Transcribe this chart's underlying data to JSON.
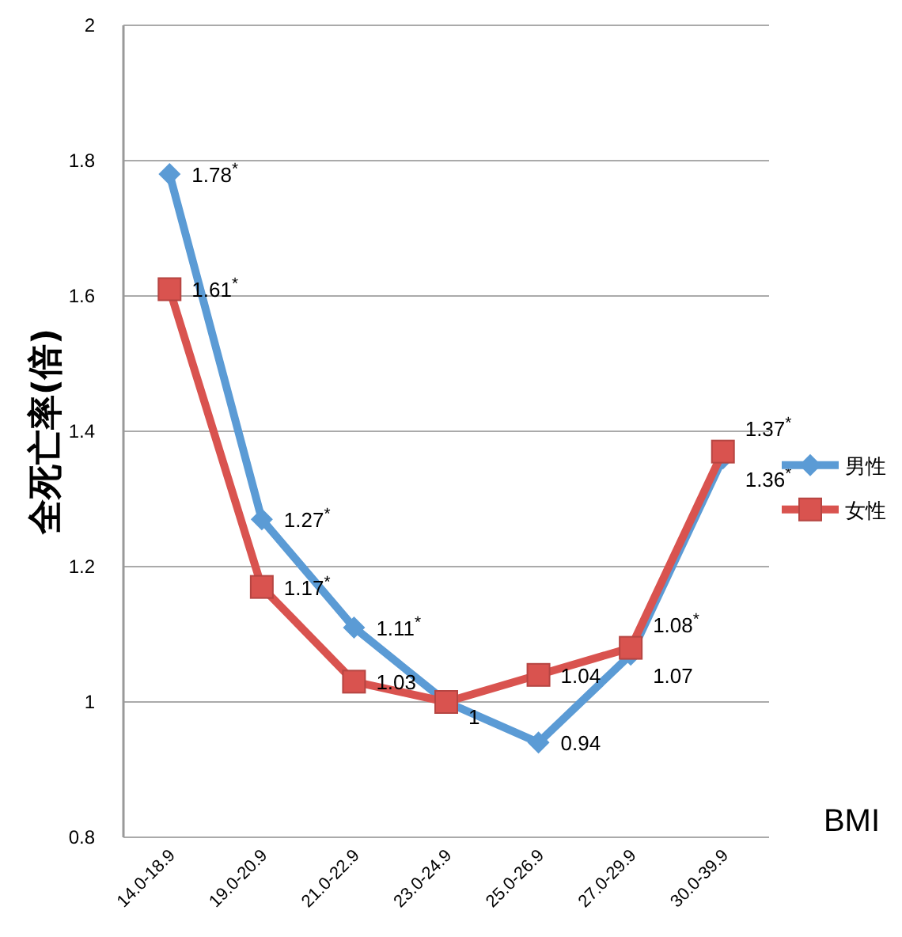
{
  "chart_data": {
    "type": "line",
    "ylabel": "全死亡率(倍)",
    "xlabel": "BMI",
    "categories": [
      "14.0-18.9",
      "19.0-20.9",
      "21.0-22.9",
      "23.0-24.9",
      "25.0-26.9",
      "27.0-29.9",
      "30.0-39.9"
    ],
    "series": [
      {
        "name": "男性",
        "color": "#5b9bd5",
        "marker": "diamond",
        "values": [
          1.78,
          1.27,
          1.11,
          1,
          0.94,
          1.07,
          1.36
        ],
        "value_labels": [
          "1.78$^{*}$",
          "1.27$^{*}$",
          "1.11$^{*}$",
          "1",
          "0.94",
          "1.07",
          "1.36$^{*}$"
        ]
      },
      {
        "name": "女性",
        "color": "#d9534f",
        "marker": "square",
        "values": [
          1.61,
          1.17,
          1.03,
          1,
          1.04,
          1.08,
          1.37
        ],
        "value_labels": [
          "1.61$^{*}$",
          "1.17$^{*}$",
          "1.03",
          null,
          "1.04",
          "1.08$^{*}$",
          "1.37$^{*}$"
        ]
      }
    ],
    "ylim": [
      0.8,
      2
    ],
    "yticks": [
      0.8,
      1,
      1.2,
      1.4,
      1.6,
      1.8,
      2
    ],
    "grid": "y",
    "legend": "right"
  }
}
